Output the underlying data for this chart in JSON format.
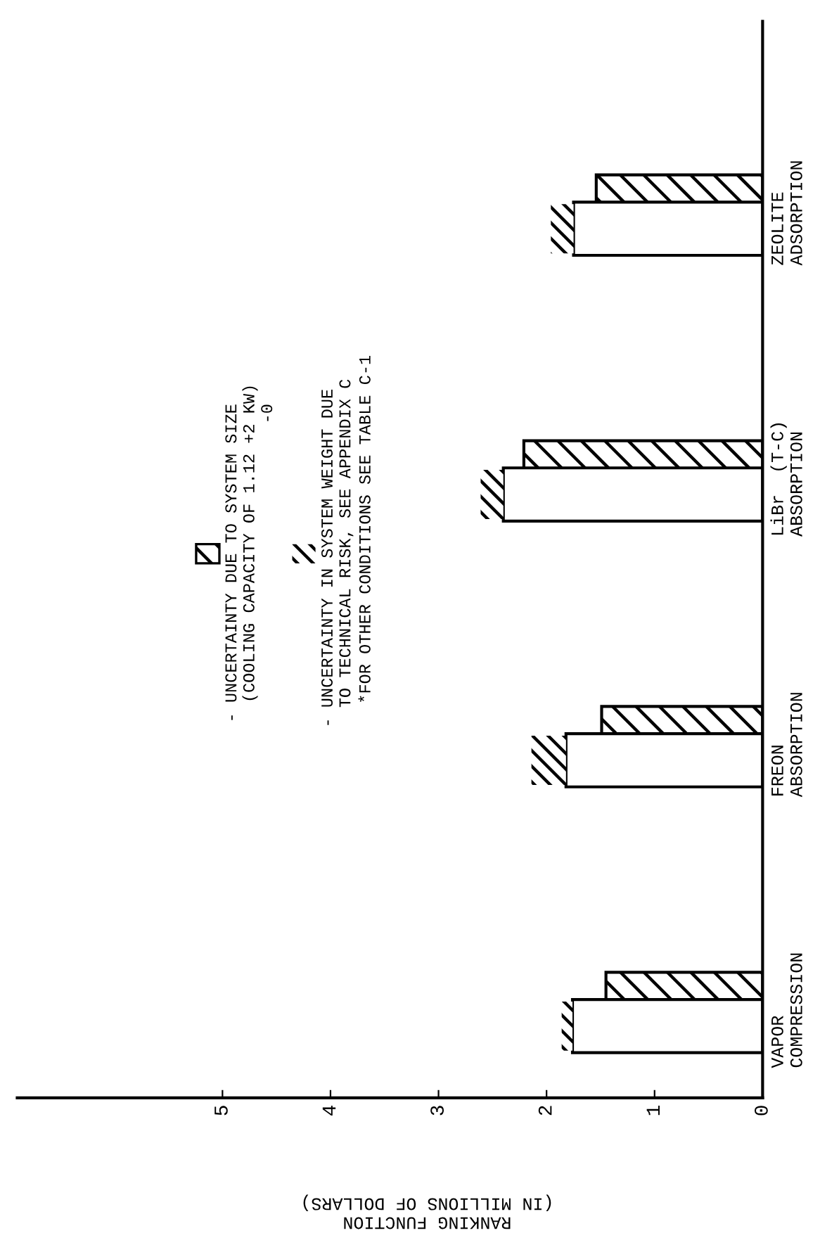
{
  "chart_data": {
    "type": "bar",
    "orientation": "horizontal",
    "categories": [
      "ZEOLITE\nADSORPTION",
      "LiBr  (T-C)\nABSORPTION",
      "FREON\nABSORPTION",
      "VAPOR\nCOMPRESSION"
    ],
    "series": [
      {
        "name": "- UNCERTAINTY DUE TO SYSTEM SIZE\n  (COOLING CAPACITY OF 1.12 +2 KW)\n                              -0",
        "color": "#000000",
        "values": [
          1.54,
          2.21,
          1.49,
          1.45
        ]
      },
      {
        "color": "#000000",
        "values": [
          1.75,
          2.4,
          1.82,
          1.76
        ]
      },
      {
        "name": "- UNCERTAINTY IN SYSTEM WEIGHT DUE\n  TO TECHNICAL RISK, SEE APPENDIX C",
        "color": "#000000",
        "values": [
          0.21,
          0.21,
          0.32,
          0.1
        ],
        "base": [
          1.75,
          2.4,
          1.82,
          1.76
        ]
      }
    ],
    "xlim": [
      6.9,
      0
    ],
    "xticks": [
      0,
      1,
      2,
      3,
      4,
      5
    ],
    "xlabel": "RANKING FUNCTION\n(IN MILLIONS OF DOLLARS)",
    "annotations": [
      "*FOR OTHER CONDITIONS SEE TABLE C-1"
    ],
    "legend": "left",
    "grid": false
  }
}
